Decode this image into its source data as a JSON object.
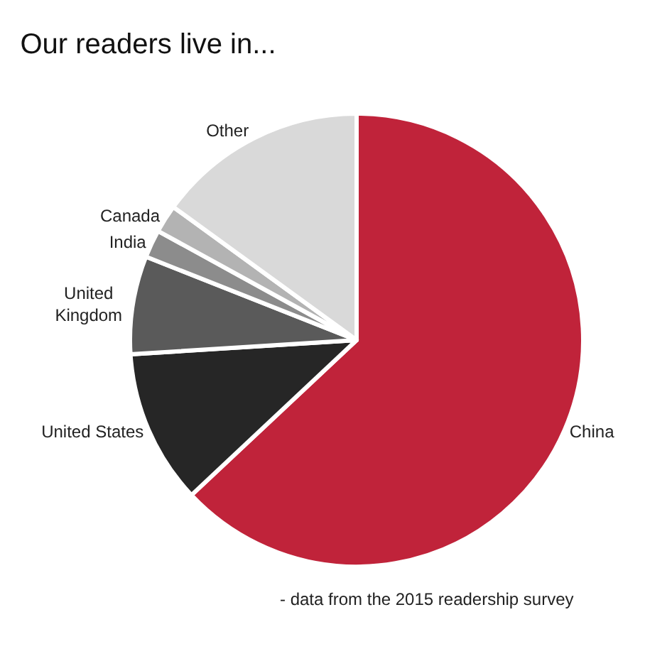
{
  "chart_data": {
    "type": "pie",
    "title": "Our readers live in...",
    "categories": [
      "China",
      "United States",
      "United Kingdom",
      "India",
      "Canada",
      "Other"
    ],
    "values": [
      63,
      11,
      7,
      2,
      2,
      15
    ],
    "colors": [
      "#c0233a",
      "#262626",
      "#5a5a5a",
      "#8c8c8c",
      "#b3b3b3",
      "#d9d9d9"
    ],
    "legend": false,
    "annotations": [
      "- data from the 2015 readership survey"
    ]
  }
}
